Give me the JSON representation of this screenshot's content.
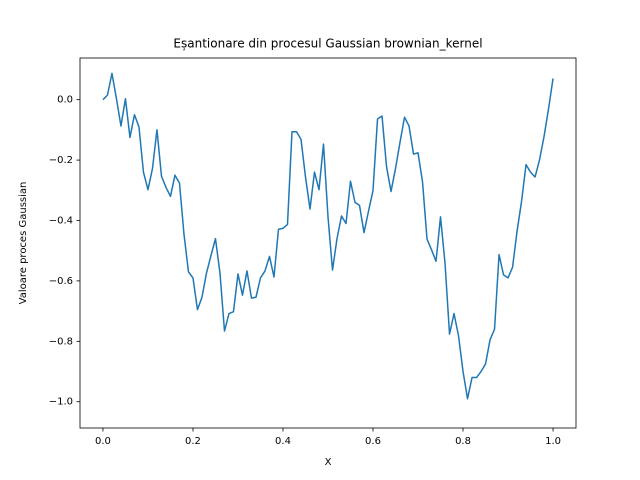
{
  "chart_data": {
    "type": "line",
    "title": "Eșantionare din procesul Gaussian brownian_kernel",
    "xlabel": "X",
    "ylabel": "Valoare proces Gaussian",
    "x": [
      0,
      0.01,
      0.02,
      0.03,
      0.04,
      0.05,
      0.06,
      0.07,
      0.08,
      0.09,
      0.1,
      0.11,
      0.12,
      0.13,
      0.14,
      0.15,
      0.16,
      0.17,
      0.18,
      0.19,
      0.2,
      0.21,
      0.22,
      0.23,
      0.24,
      0.25,
      0.26,
      0.27,
      0.28,
      0.29,
      0.3,
      0.31,
      0.32,
      0.33,
      0.34,
      0.35,
      0.36,
      0.37,
      0.38,
      0.39,
      0.4,
      0.41,
      0.42,
      0.43,
      0.44,
      0.45,
      0.46,
      0.47,
      0.48,
      0.49,
      0.5,
      0.51,
      0.52,
      0.53,
      0.54,
      0.55,
      0.56,
      0.57,
      0.58,
      0.59,
      0.6,
      0.61,
      0.62,
      0.63,
      0.64,
      0.65,
      0.66,
      0.67,
      0.68,
      0.69,
      0.7,
      0.71,
      0.72,
      0.73,
      0.74,
      0.75,
      0.76,
      0.77,
      0.78,
      0.79,
      0.8,
      0.81,
      0.82,
      0.83,
      0.84,
      0.85,
      0.86,
      0.87,
      0.88,
      0.89,
      0.9,
      0.91,
      0.92,
      0.93,
      0.94,
      0.95,
      0.96,
      0.97,
      0.98,
      0.99,
      1.0
    ],
    "series": [
      {
        "color": "#1f77b4",
        "values": [
          0.0,
          0.015,
          0.087,
          0.003,
          -0.087,
          0.003,
          -0.125,
          -0.05,
          -0.09,
          -0.24,
          -0.298,
          -0.228,
          -0.1,
          -0.253,
          -0.29,
          -0.32,
          -0.25,
          -0.276,
          -0.445,
          -0.57,
          -0.59,
          -0.695,
          -0.654,
          -0.574,
          -0.516,
          -0.46,
          -0.574,
          -0.766,
          -0.708,
          -0.702,
          -0.577,
          -0.647,
          -0.567,
          -0.657,
          -0.654,
          -0.59,
          -0.567,
          -0.519,
          -0.587,
          -0.429,
          -0.426,
          -0.413,
          -0.106,
          -0.106,
          -0.131,
          -0.256,
          -0.362,
          -0.24,
          -0.298,
          -0.147,
          -0.388,
          -0.564,
          -0.46,
          -0.385,
          -0.41,
          -0.27,
          -0.34,
          -0.35,
          -0.44,
          -0.369,
          -0.301,
          -0.064,
          -0.054,
          -0.221,
          -0.304,
          -0.228,
          -0.141,
          -0.058,
          -0.087,
          -0.18,
          -0.176,
          -0.272,
          -0.462,
          -0.497,
          -0.535,
          -0.388,
          -0.542,
          -0.776,
          -0.708,
          -0.782,
          -0.9,
          -0.99,
          -0.92,
          -0.92,
          -0.9,
          -0.875,
          -0.795,
          -0.76,
          -0.513,
          -0.58,
          -0.59,
          -0.555,
          -0.436,
          -0.337,
          -0.215,
          -0.24,
          -0.256,
          -0.199,
          -0.122,
          -0.03,
          0.07
        ]
      }
    ],
    "xlim": [
      -0.051,
      1.051
    ],
    "ylim": [
      -1.087,
      0.138
    ],
    "xticks": [
      {
        "value": 0,
        "label": "0.0"
      },
      0.2,
      0.4,
      0.6,
      0.8,
      {
        "value": 1,
        "label": "1.0"
      }
    ],
    "yticks": [
      {
        "value": 0,
        "label": "0.0"
      },
      {
        "value": -0.2,
        "label": "−0.2"
      },
      {
        "value": -0.4,
        "label": "−0.4"
      },
      {
        "value": -0.6,
        "label": "−0.6"
      },
      {
        "value": -0.8,
        "label": "−0.8"
      },
      {
        "value": -1,
        "label": "−1.0"
      }
    ],
    "grid": false
  }
}
